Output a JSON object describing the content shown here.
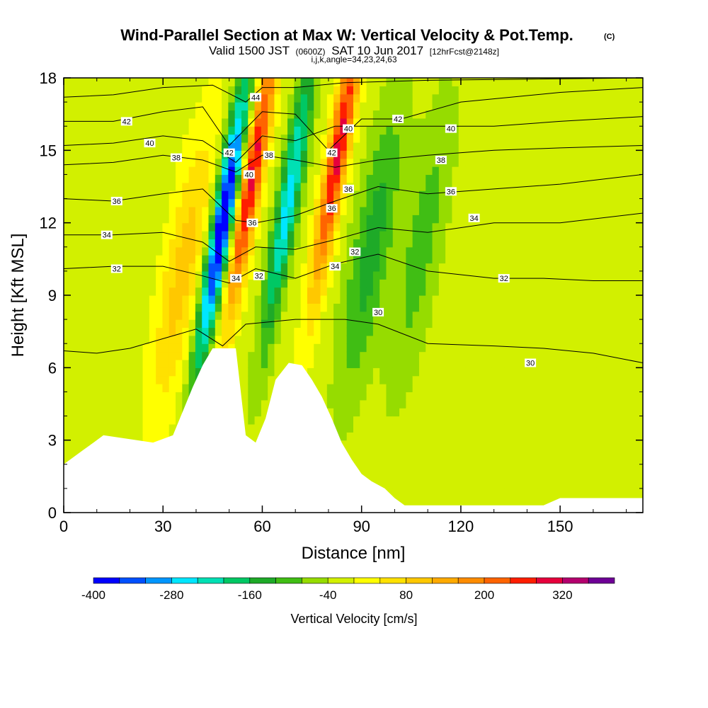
{
  "header": {
    "title_main": "Wind-Parallel Section at Max W: Vertical Velocity & Pot.Temp.",
    "title_mark": "(C)",
    "valid_pre": "Valid 1500 JST",
    "valid_utc": "(0600Z)",
    "valid_post": "SAT 10 Jun 2017",
    "forecast": "[12hrFcst@2148z]",
    "indices": "i,j,k,angle=34,23,24,63"
  },
  "chart_data": {
    "type": "heatmap",
    "xlabel": "Distance [nm]",
    "ylabel": "Height [Kft MSL]",
    "xlim": [
      0,
      175
    ],
    "ylim": [
      0,
      18
    ],
    "x_ticks": [
      0,
      30,
      60,
      90,
      120,
      150
    ],
    "y_ticks": [
      0,
      3,
      6,
      9,
      12,
      15,
      18
    ],
    "colorbar": {
      "label": "Vertical Velocity [cm/s]",
      "tick_labels": [
        "-400",
        "-280",
        "-160",
        "-40",
        "80",
        "200",
        "320"
      ],
      "levels": [
        -400,
        -360,
        -320,
        -280,
        -240,
        -200,
        -160,
        -120,
        -80,
        -40,
        0,
        40,
        80,
        120,
        160,
        200,
        240,
        280,
        320,
        360,
        400
      ],
      "colors": [
        "#0000ff",
        "#0050ff",
        "#0096ff",
        "#00e6ff",
        "#00e0b4",
        "#00c864",
        "#1eaa28",
        "#40be14",
        "#96dc00",
        "#d2f000",
        "#ffff00",
        "#ffe100",
        "#ffc800",
        "#ffaa00",
        "#ff8c00",
        "#ff6400",
        "#ff1e00",
        "#e6003c",
        "#b4006e",
        "#6e0096"
      ]
    },
    "terrain": [
      [
        0,
        2.0
      ],
      [
        3,
        2.3
      ],
      [
        6,
        2.6
      ],
      [
        9,
        2.9
      ],
      [
        12,
        3.2
      ],
      [
        27,
        2.9
      ],
      [
        33,
        3.2
      ],
      [
        36,
        4.2
      ],
      [
        39,
        5.2
      ],
      [
        42,
        6.1
      ],
      [
        45,
        6.8
      ],
      [
        48,
        6.8
      ],
      [
        52,
        6.8
      ],
      [
        55,
        3.2
      ],
      [
        58,
        2.9
      ],
      [
        61,
        3.9
      ],
      [
        64,
        5.5
      ],
      [
        68,
        6.2
      ],
      [
        72,
        6.1
      ],
      [
        75,
        5.5
      ],
      [
        78,
        4.8
      ],
      [
        81,
        3.9
      ],
      [
        84,
        2.9
      ],
      [
        87,
        2.2
      ],
      [
        90,
        1.6
      ],
      [
        93,
        1.3
      ],
      [
        97,
        1.0
      ],
      [
        100,
        0.6
      ],
      [
        103,
        0.3
      ],
      [
        145,
        0.3
      ],
      [
        150,
        0.6
      ],
      [
        175,
        0.6
      ]
    ],
    "w_features": [
      {
        "x": 48,
        "z": 12,
        "w": -400
      },
      {
        "x": 57,
        "z": 14,
        "w": 320
      },
      {
        "x": 68,
        "z": 13,
        "w": -240
      },
      {
        "x": 83,
        "z": 15,
        "w": 320
      },
      {
        "x": 93,
        "z": 11,
        "w": -120
      },
      {
        "x": 36,
        "z": 10,
        "w": 120
      },
      {
        "x": 108,
        "z": 11,
        "w": -80
      }
    ],
    "theta_contours": [
      {
        "label": "30",
        "points": [
          [
            0,
            6.7
          ],
          [
            10,
            6.6
          ],
          [
            20,
            6.8
          ],
          [
            30,
            7.2
          ],
          [
            40,
            7.6
          ],
          [
            48,
            6.9
          ],
          [
            55,
            7.8
          ],
          [
            70,
            8.0
          ],
          [
            85,
            8.0
          ],
          [
            95,
            7.8
          ],
          [
            110,
            7.0
          ],
          [
            130,
            6.9
          ],
          [
            145,
            6.8
          ],
          [
            160,
            6.6
          ],
          [
            175,
            6.2
          ]
        ],
        "label_at": [
          [
            95,
            8.3
          ],
          [
            141,
            6.2
          ]
        ]
      },
      {
        "label": "32",
        "points": [
          [
            0,
            10.1
          ],
          [
            15,
            10.2
          ],
          [
            30,
            10.2
          ],
          [
            42,
            9.8
          ],
          [
            50,
            9.5
          ],
          [
            58,
            10.1
          ],
          [
            70,
            9.7
          ],
          [
            82,
            10.3
          ],
          [
            95,
            10.7
          ],
          [
            110,
            10.0
          ],
          [
            130,
            9.7
          ],
          [
            145,
            9.7
          ],
          [
            160,
            9.6
          ],
          [
            175,
            9.6
          ]
        ],
        "label_at": [
          [
            16,
            10.1
          ],
          [
            59,
            9.8
          ],
          [
            88,
            10.8
          ],
          [
            133,
            9.7
          ]
        ]
      },
      {
        "label": "34",
        "points": [
          [
            0,
            11.5
          ],
          [
            15,
            11.5
          ],
          [
            30,
            11.6
          ],
          [
            42,
            11.2
          ],
          [
            50,
            10.4
          ],
          [
            58,
            11.0
          ],
          [
            70,
            10.9
          ],
          [
            82,
            11.3
          ],
          [
            95,
            11.8
          ],
          [
            110,
            11.6
          ],
          [
            130,
            12.0
          ],
          [
            150,
            12.0
          ],
          [
            175,
            12.4
          ]
        ],
        "label_at": [
          [
            13,
            11.5
          ],
          [
            52,
            9.7
          ],
          [
            82,
            10.2
          ],
          [
            124,
            12.2
          ]
        ]
      },
      {
        "label": "36",
        "points": [
          [
            0,
            13.0
          ],
          [
            15,
            12.9
          ],
          [
            30,
            13.2
          ],
          [
            42,
            13.4
          ],
          [
            52,
            12.1
          ],
          [
            58,
            12.0
          ],
          [
            70,
            12.3
          ],
          [
            82,
            12.9
          ],
          [
            95,
            13.5
          ],
          [
            110,
            13.2
          ],
          [
            130,
            13.4
          ],
          [
            150,
            13.6
          ],
          [
            175,
            14.0
          ]
        ],
        "label_at": [
          [
            16,
            12.9
          ],
          [
            57,
            12.0
          ],
          [
            81,
            12.6
          ],
          [
            86,
            13.4
          ],
          [
            117,
            13.3
          ]
        ]
      },
      {
        "label": "38",
        "points": [
          [
            0,
            14.4
          ],
          [
            15,
            14.5
          ],
          [
            30,
            14.8
          ],
          [
            42,
            14.6
          ],
          [
            52,
            14.1
          ],
          [
            60,
            14.8
          ],
          [
            70,
            14.6
          ],
          [
            82,
            14.3
          ],
          [
            95,
            14.6
          ],
          [
            110,
            14.8
          ],
          [
            130,
            15.0
          ],
          [
            150,
            15.1
          ],
          [
            175,
            15.2
          ]
        ],
        "label_at": [
          [
            34,
            14.7
          ],
          [
            62,
            14.8
          ],
          [
            114,
            14.6
          ]
        ]
      },
      {
        "label": "40",
        "points": [
          [
            0,
            15.2
          ],
          [
            15,
            15.3
          ],
          [
            30,
            15.6
          ],
          [
            42,
            15.4
          ],
          [
            52,
            14.5
          ],
          [
            60,
            15.6
          ],
          [
            70,
            15.4
          ],
          [
            82,
            16.0
          ],
          [
            95,
            16.0
          ],
          [
            110,
            16.0
          ],
          [
            130,
            16.0
          ],
          [
            150,
            16.2
          ],
          [
            175,
            16.4
          ]
        ],
        "label_at": [
          [
            26,
            15.3
          ],
          [
            56,
            14.0
          ],
          [
            86,
            15.9
          ],
          [
            117,
            15.9
          ]
        ]
      },
      {
        "label": "42",
        "points": [
          [
            0,
            16.2
          ],
          [
            15,
            16.2
          ],
          [
            30,
            16.6
          ],
          [
            42,
            16.8
          ],
          [
            50,
            15.2
          ],
          [
            60,
            16.6
          ],
          [
            70,
            16.5
          ],
          [
            80,
            15.0
          ],
          [
            90,
            16.3
          ],
          [
            102,
            16.3
          ],
          [
            120,
            17.0
          ],
          [
            150,
            17.4
          ],
          [
            175,
            17.6
          ]
        ],
        "label_at": [
          [
            19,
            16.2
          ],
          [
            50,
            14.9
          ],
          [
            81,
            14.9
          ],
          [
            101,
            16.3
          ]
        ]
      },
      {
        "label": "44",
        "points": [
          [
            0,
            17.2
          ],
          [
            15,
            17.3
          ],
          [
            30,
            17.6
          ],
          [
            45,
            17.7
          ],
          [
            55,
            17.0
          ],
          [
            60,
            17.6
          ],
          [
            70,
            17.6
          ],
          [
            85,
            17.8
          ],
          [
            110,
            17.9
          ],
          [
            175,
            18.0
          ]
        ],
        "label_at": [
          [
            58,
            17.2
          ]
        ]
      }
    ]
  }
}
